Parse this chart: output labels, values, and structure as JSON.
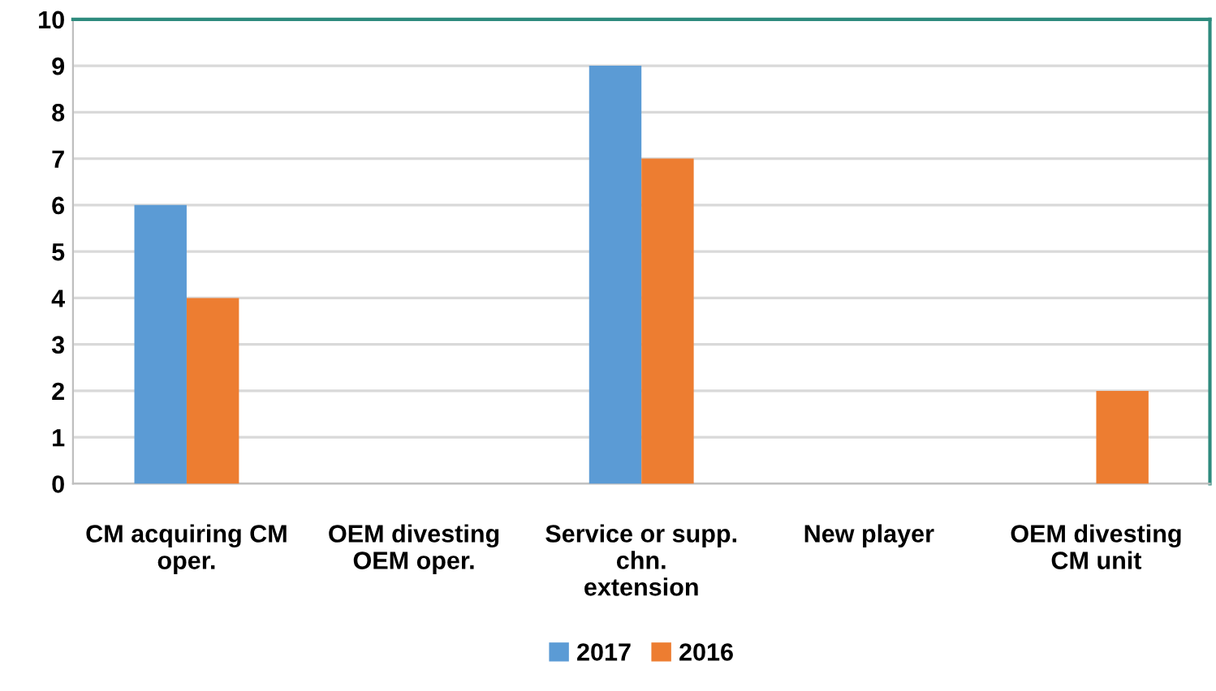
{
  "chart_data": {
    "type": "bar",
    "categories": [
      "CM acquiring CM\noper.",
      "OEM divesting\nOEM oper.",
      "Service or supp.\nchn.\nextension",
      "New player",
      "OEM divesting\nCM unit"
    ],
    "series": [
      {
        "name": "2017",
        "color": "#5b9bd5",
        "values": [
          6,
          0,
          9,
          0,
          0
        ]
      },
      {
        "name": "2016",
        "color": "#ed7d31",
        "values": [
          4,
          0,
          7,
          0,
          2
        ]
      }
    ],
    "ylim": [
      0,
      10
    ],
    "yticks": [
      0,
      1,
      2,
      3,
      4,
      5,
      6,
      7,
      8,
      9,
      10
    ],
    "grid": "y",
    "legend": "bottom"
  }
}
